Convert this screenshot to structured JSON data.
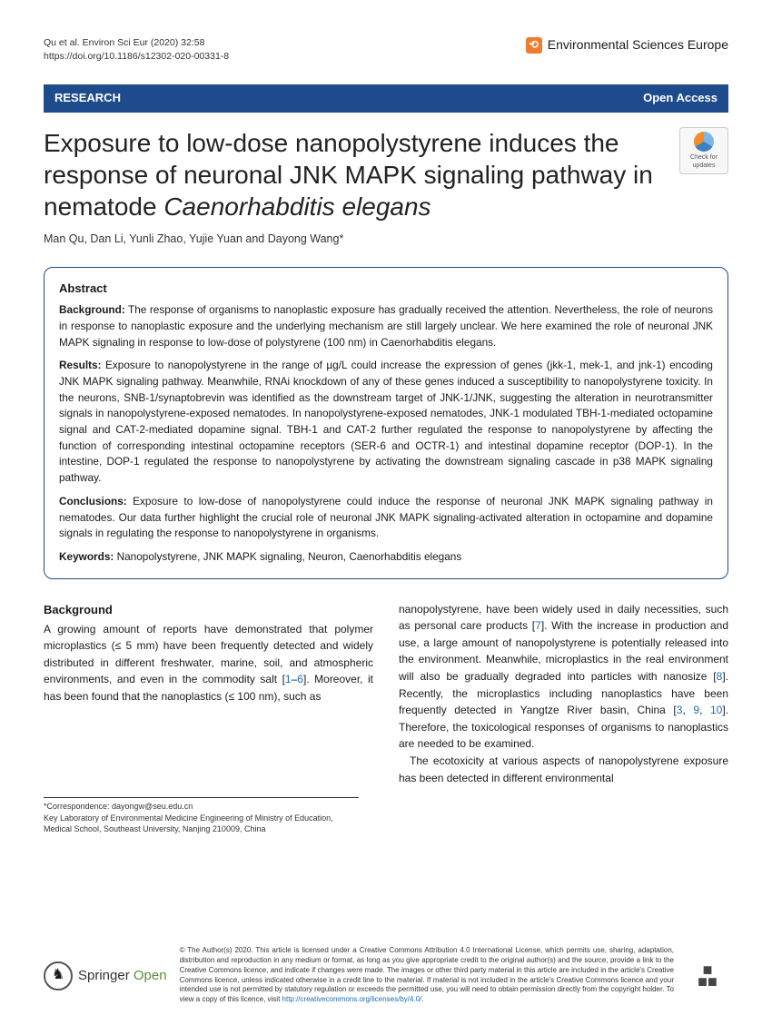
{
  "header": {
    "citation_line1": "Qu et al. Environ Sci Eur          (2020) 32:58",
    "citation_line2": "https://doi.org/10.1186/s12302-020-00331-8",
    "journal_name": "Environmental Sciences Europe",
    "brand_icon_glyph": "⟲"
  },
  "bar": {
    "left": "RESEARCH",
    "right": "Open Access"
  },
  "title": {
    "plain1": "Exposure to low-dose nanopolystyrene induces the response of neuronal JNK MAPK signaling pathway in nematode ",
    "italic": "Caenorhabditis elegans"
  },
  "check_updates": {
    "line1": "Check for",
    "line2": "updates"
  },
  "authors": "Man Qu, Dan Li, Yunli Zhao, Yujie Yuan and Dayong Wang*",
  "abstract": {
    "heading": "Abstract",
    "background_label": "Background:",
    "background_text": " The response of organisms to nanoplastic exposure has gradually received the attention. Nevertheless, the role of neurons in response to nanoplastic exposure and the underlying mechanism are still largely unclear. We here examined the role of neuronal JNK MAPK signaling in response to low-dose of polystyrene (100 nm) in Caenorhabditis elegans.",
    "results_label": "Results:",
    "results_text": " Exposure to nanopolystyrene in the range of µg/L could increase the expression of genes (jkk-1, mek-1, and jnk-1) encoding JNK MAPK signaling pathway. Meanwhile, RNAi knockdown of any of these genes induced a susceptibility to nanopolystyrene toxicity. In the neurons, SNB-1/synaptobrevin was identified as the downstream target of JNK-1/JNK, suggesting the alteration in neurotransmitter signals in nanopolystyrene-exposed nematodes. In nanopolystyrene-exposed nematodes, JNK-1 modulated TBH-1-mediated octopamine signal and CAT-2-mediated dopamine signal. TBH-1 and CAT-2 further regulated the response to nanopolystyrene by affecting the function of corresponding intestinal octopamine receptors (SER-6 and OCTR-1) and intestinal dopamine receptor (DOP-1). In the intestine, DOP-1 regulated the response to nanopolystyrene by activating the downstream signaling cascade in p38 MAPK signaling pathway.",
    "conclusions_label": "Conclusions:",
    "conclusions_text": " Exposure to low-dose of nanopolystyrene could induce the response of neuronal JNK MAPK signaling pathway in nematodes. Our data further highlight the crucial role of neuronal JNK MAPK signaling-activated alteration in octopamine and dopamine signals in regulating the response to nanopolystyrene in organisms.",
    "keywords_label": "Keywords:",
    "keywords_text": " Nanopolystyrene, JNK MAPK signaling, Neuron, Caenorhabditis elegans"
  },
  "body": {
    "section_heading": "Background",
    "col_left_1": "A growing amount of reports have demonstrated that polymer microplastics (≤ 5 mm) have been frequently detected and widely distributed in different freshwater, marine, soil, and atmospheric environments, and even in the commodity salt [",
    "ref1": "1",
    "col_left_2": "–",
    "ref6": "6",
    "col_left_3": "]. Moreover, it has been found that the nanoplastics (≤ 100 nm), such as",
    "col_right_1": "nanopolystyrene, have been widely used in daily necessities, such as personal care products [",
    "ref7": "7",
    "col_right_2": "]. With the increase in production and use, a large amount of nanopolystyrene is potentially released into the environment. Meanwhile, microplastics in the real environment will also be gradually degraded into particles with nanosize [",
    "ref8": "8",
    "col_right_3": "]. Recently, the microplastics including nanoplastics have been frequently detected in Yangtze River basin, China [",
    "ref3": "3",
    "ref9": "9",
    "ref10": "10",
    "col_right_4": "]. Therefore, the toxicological responses of organisms to nanoplastics are needed to be examined.",
    "col_right_5": "The ecotoxicity at various aspects of nanopolystyrene exposure has been detected in different environmental"
  },
  "footnote": {
    "l1": "*Correspondence:  dayongw@seu.edu.cn",
    "l2": "Key Laboratory of Environmental Medicine Engineering of Ministry of Education, Medical School, Southeast University, Nanjing 210009, China"
  },
  "footer": {
    "springer": "Springer",
    "open": "Open",
    "license": "© The Author(s) 2020. This article is licensed under a Creative Commons Attribution 4.0 International License, which permits use, sharing, adaptation, distribution and reproduction in any medium or format, as long as you give appropriate credit to the original author(s) and the source, provide a link to the Creative Commons licence, and indicate if changes were made. The images or other third party material in this article are included in the article's Creative Commons licence, unless indicated otherwise in a credit line to the material. If material is not included in the article's Creative Commons licence and your intended use is not permitted by statutory regulation or exceeds the permitted use, you will need to obtain permission directly from the copyright holder. To view a copy of this licence, visit ",
    "license_url": "http://creativecommons.org/licenses/by/4.0/",
    "license_end": "."
  },
  "colors": {
    "bar_bg": "#1e4b8c",
    "brand_orange": "#ed7d31",
    "link_blue": "#1e6bb8",
    "springer_green": "#5a8a3a"
  }
}
